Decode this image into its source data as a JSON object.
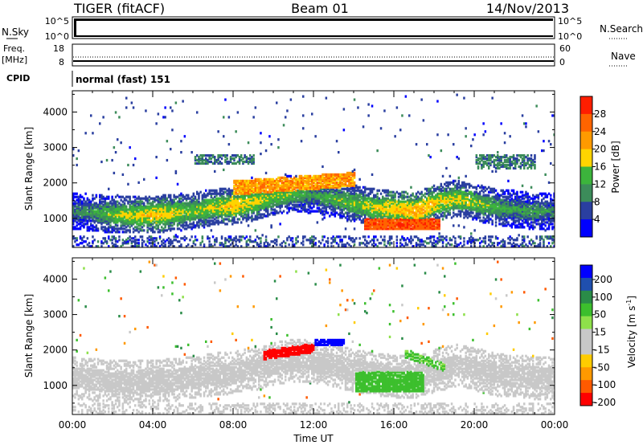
{
  "header": {
    "station": "TIGER (fitACF)",
    "beam": "Beam 01",
    "date": "14/Nov/2013"
  },
  "panels": {
    "nsky": {
      "left_label": "N.Sky",
      "left_ticks": [
        "10^5",
        "10^0"
      ],
      "right_ticks": [
        "10^5",
        "10^0"
      ],
      "right_label": "N.Search"
    },
    "freq": {
      "left_label_1": "Freq.",
      "left_label_2": "[MHz]",
      "left_ticks": [
        "18",
        "8"
      ],
      "right_ticks": [
        "60",
        "0"
      ],
      "right_label": "Nave"
    },
    "cpid": {
      "label": "CPID",
      "value": "normal (fast) 151"
    }
  },
  "colors": {
    "power_scale": [
      "#0000ff",
      "#2a3fa0",
      "#3c8c5a",
      "#3cb43c",
      "#ffd400",
      "#ff9a00",
      "#ff6400",
      "#ff1e00"
    ],
    "velocity_scale": [
      "#ff0000",
      "#ff5a00",
      "#ff9900",
      "#ffcc00",
      "#c8c8c8",
      "#c8c8c8",
      "#8ee04a",
      "#3cbf2d",
      "#2a8c48",
      "#1f4fae",
      "#0000ff"
    ]
  },
  "chart_data": [
    {
      "type": "heatmap",
      "name": "power-panel",
      "xlabel": "",
      "ylabel": "Slant Range [km]",
      "x_ticks": [
        "00:00",
        "04:00",
        "08:00",
        "12:00",
        "16:00",
        "20:00",
        "00:00"
      ],
      "xlim_hours": [
        0,
        24
      ],
      "y_ticks": [
        1000,
        2000,
        3000,
        4000
      ],
      "ylim": [
        180,
        4600
      ],
      "colorbar": {
        "label": "Power [dB]",
        "ticks": [
          4,
          8,
          12,
          16,
          20,
          24,
          28
        ],
        "range": [
          0,
          32
        ]
      },
      "series": [
        {
          "x": [
            0,
            1,
            2,
            3,
            4,
            5,
            6,
            7,
            8,
            9,
            10,
            11,
            12,
            13,
            14,
            15,
            16,
            17,
            18,
            19,
            20,
            21,
            22,
            23,
            24
          ],
          "y": [
            1200,
            1150,
            1100,
            1080,
            1100,
            1150,
            1200,
            1300,
            1350,
            1450,
            1600,
            1700,
            1650,
            1550,
            1400,
            1300,
            1250,
            1200,
            1400,
            1550,
            1450,
            1300,
            1250,
            1200,
            1200
          ],
          "value": [
            10,
            12,
            16,
            18,
            20,
            18,
            16,
            18,
            20,
            18,
            16,
            14,
            12,
            14,
            16,
            18,
            20,
            22,
            20,
            18,
            16,
            14,
            12,
            12,
            10
          ]
        }
      ]
    },
    {
      "type": "heatmap",
      "name": "velocity-panel",
      "xlabel": "Time UT",
      "ylabel": "Slant Range [km]",
      "x_ticks": [
        "00:00",
        "04:00",
        "08:00",
        "12:00",
        "16:00",
        "20:00",
        "00:00"
      ],
      "xlim_hours": [
        0,
        24
      ],
      "y_ticks": [
        1000,
        2000,
        3000,
        4000
      ],
      "ylim": [
        180,
        4600
      ],
      "colorbar": {
        "label": "Velocity [m s",
        "label_sup": "-1",
        "ticks": [
          "200",
          "100",
          "50",
          "15",
          "-15",
          "-50",
          "-100",
          "-200"
        ]
      },
      "series": [
        {
          "x": [
            10,
            10.5,
            11,
            11.5,
            12,
            12.5,
            13,
            14.5,
            15,
            15.5,
            16,
            16.5,
            17
          ],
          "y": [
            1850,
            1900,
            1950,
            2100,
            2200,
            2250,
            2200,
            1100,
            1150,
            1050,
            1200,
            1300,
            1400
          ],
          "value": [
            -200,
            -200,
            -150,
            -100,
            150,
            200,
            150,
            50,
            60,
            40,
            55,
            45,
            30
          ]
        }
      ]
    }
  ]
}
